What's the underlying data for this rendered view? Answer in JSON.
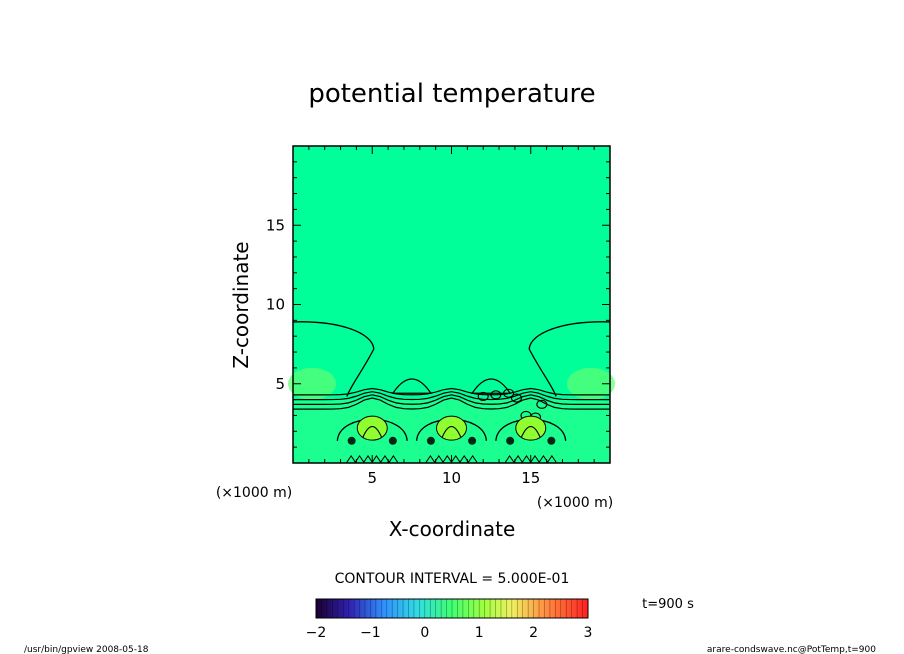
{
  "chart_data": {
    "type": "heatmap",
    "title": "potential temperature",
    "xlabel": "X-coordinate",
    "ylabel": "Z-coordinate",
    "x_unit": "(×1000 m)",
    "y_unit": "(×1000 m)",
    "xlim": [
      0,
      20
    ],
    "ylim": [
      0,
      20
    ],
    "xticks": [
      5,
      10,
      15
    ],
    "yticks": [
      5,
      10,
      15
    ],
    "contour_interval_label": "CONTOUR INTERVAL = 5.000E-01",
    "time_label": "t=900  s",
    "colorbar": {
      "min": -2,
      "max": 3,
      "tick_labels": [
        "-2",
        "-1",
        "0",
        "1",
        "2",
        "3"
      ]
    },
    "background_color": "#00ff99",
    "bubble_centers_x": [
      5,
      10,
      15
    ],
    "inversion_height": 4.0
  },
  "footer": {
    "left": "/usr/bin/gpview   2008-05-18",
    "right": "arare-condswave.nc@PotTemp,t=900"
  }
}
